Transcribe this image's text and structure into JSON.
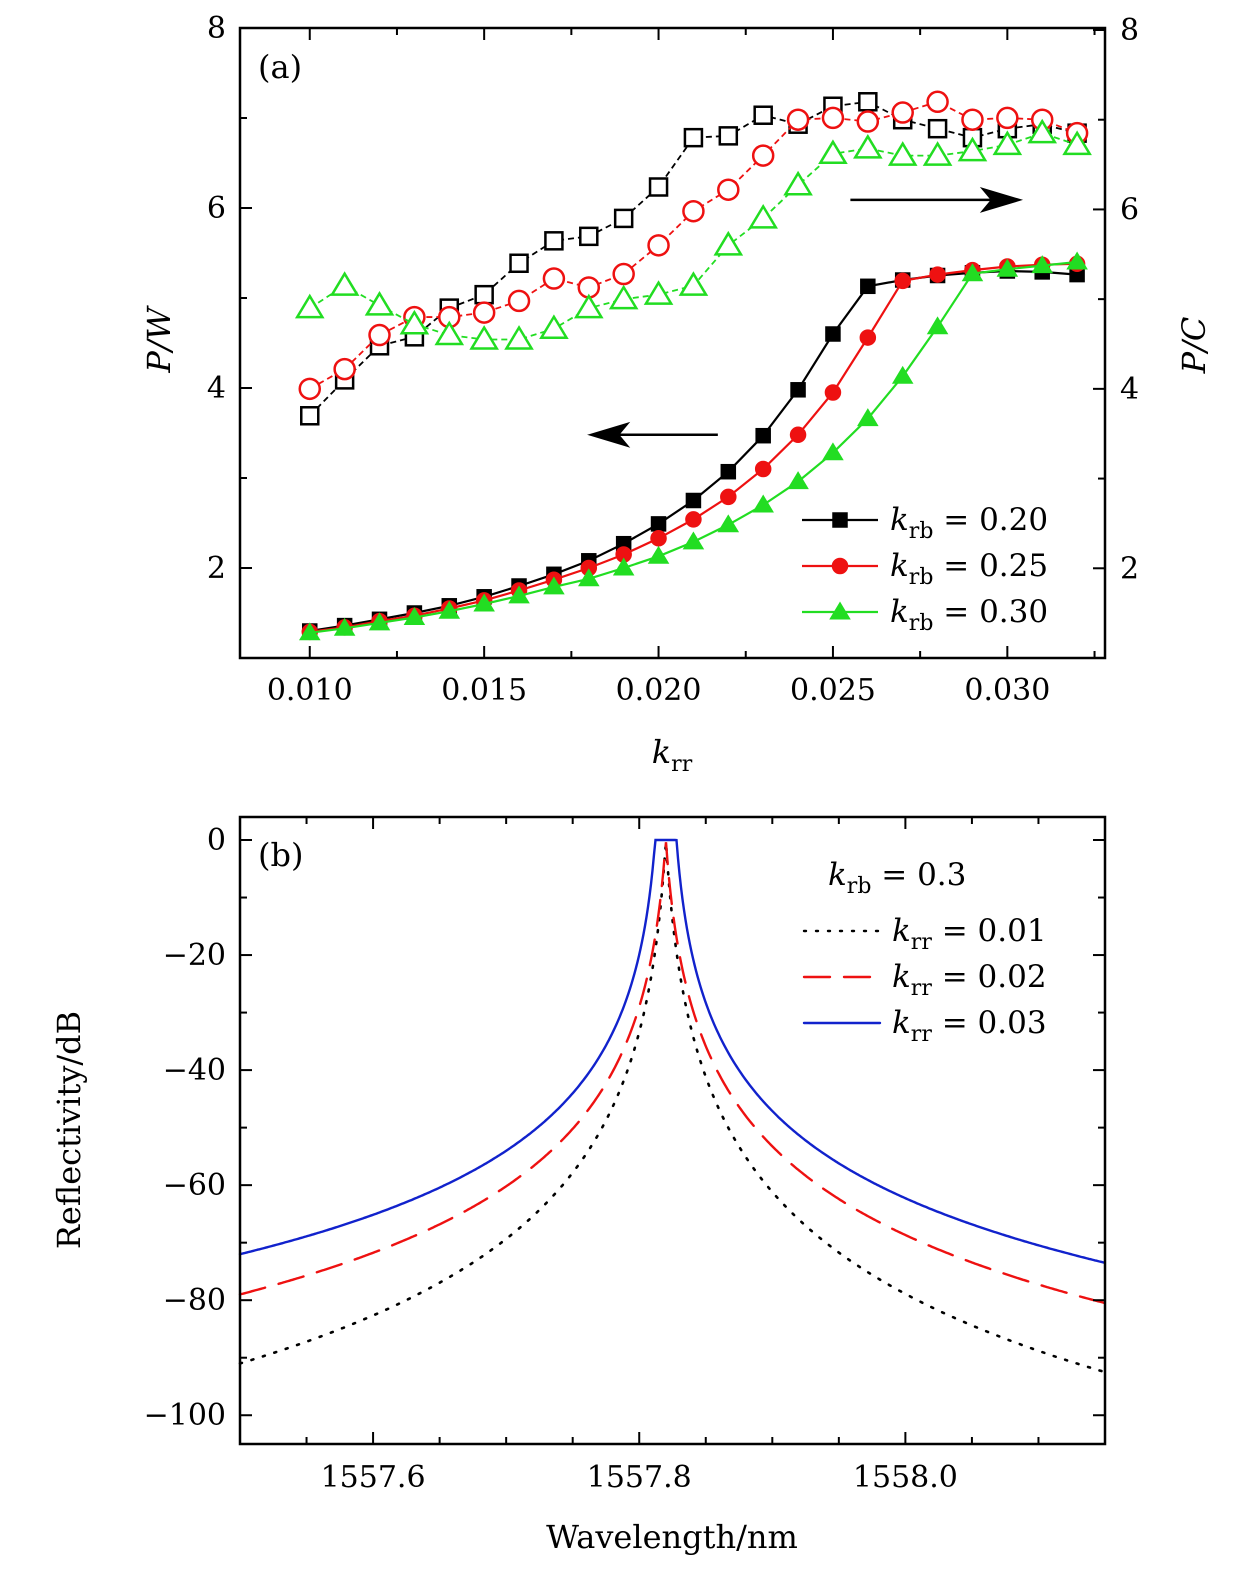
{
  "chart_data": [
    {
      "type": "line",
      "panel_label": "(a)",
      "xlabel": {
        "main": "k",
        "sub": "rr"
      },
      "ylabel_left": "P/W",
      "ylabel_right": "P/C",
      "xlim": [
        0.008,
        0.0328
      ],
      "ylim_left": [
        1.0,
        8.0
      ],
      "ylim_right": [
        1.0,
        8.0
      ],
      "x_ticks": [
        0.01,
        0.015,
        0.02,
        0.025,
        0.03
      ],
      "x_tick_labels": [
        "0.010",
        "0.015",
        "0.020",
        "0.025",
        "0.030"
      ],
      "y_ticks": [
        2,
        4,
        6,
        8
      ],
      "y_tick_labels": [
        "2",
        "4",
        "6",
        "8"
      ],
      "y_right_ticks": [
        2,
        4,
        6,
        8
      ],
      "y_right_tick_labels": [
        "2",
        "4",
        "6",
        "8"
      ],
      "legend_placement": "bottom-right",
      "x": [
        0.01,
        0.011,
        0.012,
        0.013,
        0.014,
        0.015,
        0.016,
        0.017,
        0.018,
        0.019,
        0.02,
        0.021,
        0.022,
        0.023,
        0.024,
        0.025,
        0.026,
        0.027,
        0.028,
        0.029,
        0.03,
        0.031,
        0.032
      ],
      "series_power": [
        {
          "name": "0.20",
          "color": "#000000",
          "marker": "square",
          "values": [
            1.3,
            1.36,
            1.43,
            1.5,
            1.58,
            1.68,
            1.8,
            1.93,
            2.08,
            2.27,
            2.49,
            2.75,
            3.07,
            3.47,
            3.98,
            4.6,
            5.13,
            5.2,
            5.25,
            5.28,
            5.3,
            5.29,
            5.26
          ]
        },
        {
          "name": "0.25",
          "color": "#ee1111",
          "marker": "circle",
          "values": [
            1.29,
            1.34,
            1.41,
            1.47,
            1.55,
            1.64,
            1.75,
            1.87,
            2.0,
            2.15,
            2.33,
            2.54,
            2.79,
            3.1,
            3.48,
            3.95,
            4.56,
            5.19,
            5.26,
            5.31,
            5.35,
            5.37,
            5.38
          ]
        },
        {
          "name": "0.30",
          "color": "#22dd22",
          "marker": "triangle",
          "values": [
            1.28,
            1.33,
            1.39,
            1.45,
            1.52,
            1.6,
            1.69,
            1.79,
            1.88,
            2.0,
            2.13,
            2.29,
            2.48,
            2.7,
            2.96,
            3.28,
            3.66,
            4.13,
            4.68,
            5.27,
            5.32,
            5.36,
            5.4
          ]
        }
      ],
      "series_pc": [
        {
          "name": "0.20",
          "color": "#000000",
          "marker": "open-square",
          "values": [
            3.7,
            4.1,
            4.48,
            4.58,
            4.9,
            5.05,
            5.4,
            5.65,
            5.7,
            5.9,
            6.25,
            6.8,
            6.82,
            7.05,
            6.95,
            7.15,
            7.2,
            7.0,
            6.9,
            6.8,
            6.9,
            6.95,
            6.85
          ]
        },
        {
          "name": "0.25",
          "color": "#ee1111",
          "marker": "open-circle",
          "values": [
            4.0,
            4.22,
            4.6,
            4.8,
            4.8,
            4.85,
            4.98,
            5.23,
            5.13,
            5.28,
            5.6,
            5.98,
            6.22,
            6.6,
            7.0,
            7.02,
            6.98,
            7.08,
            7.2,
            7.0,
            7.02,
            7.0,
            6.85
          ]
        },
        {
          "name": "0.30",
          "color": "#22dd22",
          "marker": "open-triangle",
          "values": [
            4.9,
            5.15,
            4.93,
            4.72,
            4.6,
            4.55,
            4.55,
            4.67,
            4.9,
            5.0,
            5.05,
            5.15,
            5.6,
            5.9,
            6.27,
            6.62,
            6.68,
            6.6,
            6.6,
            6.65,
            6.72,
            6.85,
            6.72
          ]
        }
      ],
      "arrow_left": {
        "x_from": 0.0217,
        "x_to": 0.018,
        "y": 3.48
      },
      "arrow_right": {
        "x_from": 0.0255,
        "x_to": 0.0304,
        "y": 6.09
      },
      "legend": [
        {
          "label_main": "k",
          "label_sub": "rb",
          "label_value": " = 0.20",
          "color": "#000000",
          "marker": "square"
        },
        {
          "label_main": "k",
          "label_sub": "rb",
          "label_value": " = 0.25",
          "color": "#ee1111",
          "marker": "circle"
        },
        {
          "label_main": "k",
          "label_sub": "rb",
          "label_value": " = 0.30",
          "color": "#22dd22",
          "marker": "triangle"
        }
      ]
    },
    {
      "type": "line",
      "panel_label": "(b)",
      "xlabel": "Wavelength/nm",
      "ylabel": "Reflectivity/dB",
      "xlim": [
        1557.5,
        1558.15
      ],
      "ylim": [
        -105,
        4
      ],
      "x_ticks": [
        1557.6,
        1557.8,
        1558.0
      ],
      "x_tick_labels": [
        "1557.6",
        "1557.8",
        "1558.0"
      ],
      "y_ticks": [
        0,
        -20,
        -40,
        -60,
        -80,
        -100
      ],
      "y_tick_labels": [
        "0",
        "−20",
        "−40",
        "−60",
        "−80",
        "−100"
      ],
      "legend_placement": "top-right",
      "legend_heading": {
        "main": "k",
        "sub": "rb",
        "value": " = 0.3"
      },
      "center_wavelength": 1557.82,
      "series": [
        {
          "name": "0.01",
          "color": "#000000",
          "style": "dotted",
          "peak_half_width": 0.0,
          "edge_db": [
            -91,
            -92.5
          ]
        },
        {
          "name": "0.02",
          "color": "#ee1111",
          "style": "dashed",
          "peak_half_width": 0.0,
          "edge_db": [
            -79,
            -80.5
          ]
        },
        {
          "name": "0.03",
          "color": "#1122cc",
          "style": "solid",
          "peak_half_width": 0.008,
          "edge_db": [
            -72,
            -73.5
          ]
        }
      ],
      "legend": [
        {
          "label_main": "k",
          "label_sub": "rr",
          "label_value": " = 0.01",
          "color": "#000000",
          "style": "dotted"
        },
        {
          "label_main": "k",
          "label_sub": "rr",
          "label_value": " = 0.02",
          "color": "#ee1111",
          "style": "dashed"
        },
        {
          "label_main": "k",
          "label_sub": "rr",
          "label_value": " = 0.03",
          "color": "#1122cc",
          "style": "solid"
        }
      ]
    }
  ]
}
